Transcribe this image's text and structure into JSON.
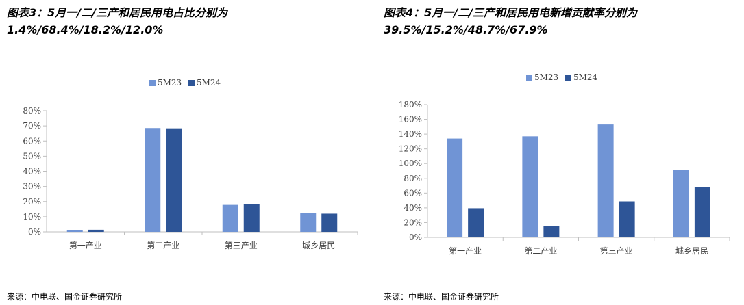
{
  "panels": [
    {
      "title_line1": "图表3：5月一/二/三产和居民用电占比分别为",
      "title_line2": "1.4%/68.4%/18.2%/12.0%",
      "source": "来源：中电联、国金证券研究所"
    },
    {
      "title_line1": "图表4：5月一/二/三产和居民用电新增贡献率分别为",
      "title_line2": "39.5%/15.2%/48.7%/67.9%",
      "source": "来源：中电联、国金证券研究所"
    }
  ],
  "colors": {
    "5M23": "#7094d5",
    "5M24": "#2e5597",
    "axis": "#bfbfbf",
    "rule": "#4a76b4"
  },
  "chart_data": [
    {
      "type": "bar",
      "categories": [
        "第一产业",
        "第二产业",
        "第三产业",
        "城乡居民"
      ],
      "series": [
        {
          "name": "5M23",
          "values": [
            1.2,
            68.6,
            17.8,
            12.2
          ]
        },
        {
          "name": "5M24",
          "values": [
            1.4,
            68.4,
            18.2,
            12.0
          ]
        }
      ],
      "ylim": [
        0,
        80
      ],
      "yticks": [
        0,
        10,
        20,
        30,
        40,
        50,
        60,
        70,
        80
      ],
      "ytick_format": "%",
      "legend": "top",
      "grid": false
    },
    {
      "type": "bar",
      "categories": [
        "第一产业",
        "第二产业",
        "第三产业",
        "城乡居民"
      ],
      "series": [
        {
          "name": "5M23",
          "values": [
            134,
            137,
            153,
            91
          ]
        },
        {
          "name": "5M24",
          "values": [
            39.5,
            15.2,
            48.7,
            67.9
          ]
        }
      ],
      "ylim": [
        0,
        180
      ],
      "yticks": [
        0,
        20,
        40,
        60,
        80,
        100,
        120,
        140,
        160,
        180
      ],
      "ytick_format": "%",
      "legend": "top",
      "grid": false
    }
  ]
}
